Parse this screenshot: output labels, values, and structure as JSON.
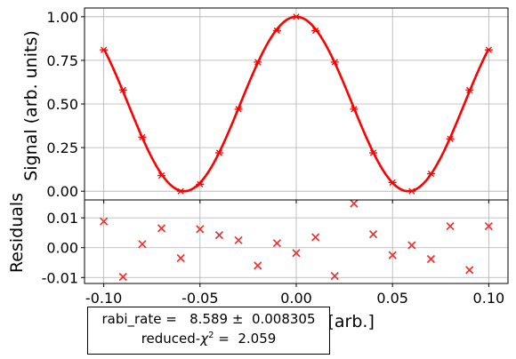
{
  "chart_data": {
    "type": "scatter",
    "xlabel": "Amplitude [arb.]",
    "xlim": [
      -0.11,
      0.11
    ],
    "xticks": [
      "-0.10",
      "-0.05",
      "0.00",
      "0.05",
      "0.10"
    ],
    "xtick_values": [
      -0.1,
      -0.05,
      0.0,
      0.05,
      0.1
    ],
    "grid": true,
    "panels": [
      {
        "name": "signal",
        "ylabel": "Signal (arb. units)",
        "ylim": [
          -0.05,
          1.05
        ],
        "yticks": [
          "0.00",
          "0.25",
          "0.50",
          "0.75",
          "1.00"
        ],
        "ytick_values": [
          0.0,
          0.25,
          0.5,
          0.75,
          1.0
        ],
        "data_color": "#ff0000",
        "fit_color": "#ff0000",
        "x": [
          -0.1,
          -0.09,
          -0.08,
          -0.07,
          -0.06,
          -0.05,
          -0.04,
          -0.03,
          -0.02,
          -0.01,
          0.0,
          0.01,
          0.02,
          0.03,
          0.04,
          0.05,
          0.06,
          0.07,
          0.08,
          0.09,
          0.1
        ],
        "values": [
          0.81,
          0.58,
          0.31,
          0.09,
          0.0,
          0.04,
          0.22,
          0.47,
          0.74,
          0.92,
          1.0,
          0.92,
          0.74,
          0.47,
          0.22,
          0.05,
          0.0,
          0.1,
          0.3,
          0.58,
          0.81
        ],
        "fit": {
          "rabi_rate": 8.589
        }
      },
      {
        "name": "residuals",
        "ylabel": "Residuals",
        "ylim": [
          -0.012,
          0.016
        ],
        "yticks": [
          "-0.01",
          "0.00",
          "0.01"
        ],
        "ytick_values": [
          -0.01,
          0.0,
          0.01
        ],
        "data_color": "#ee3333",
        "x": [
          -0.1,
          -0.09,
          -0.08,
          -0.07,
          -0.06,
          -0.05,
          -0.04,
          -0.03,
          -0.02,
          -0.01,
          0.0,
          0.01,
          0.02,
          0.03,
          0.04,
          0.05,
          0.06,
          0.07,
          0.08,
          0.09,
          0.1
        ],
        "values": [
          0.0088,
          -0.0098,
          0.0012,
          0.0065,
          -0.0035,
          0.0062,
          0.0042,
          0.0025,
          -0.006,
          0.0015,
          -0.0018,
          0.0035,
          -0.0095,
          0.0148,
          0.0045,
          -0.0025,
          0.0008,
          -0.0038,
          0.0072,
          -0.0075,
          0.0072
        ]
      }
    ]
  },
  "fit_box": {
    "line1": "rabi_rate =   8.589 ±  0.008305",
    "chi_prefix": "reduced-",
    "chi_symbol": "χ",
    "chi_sup": "2",
    "chi_suffix": " =  2.059"
  }
}
